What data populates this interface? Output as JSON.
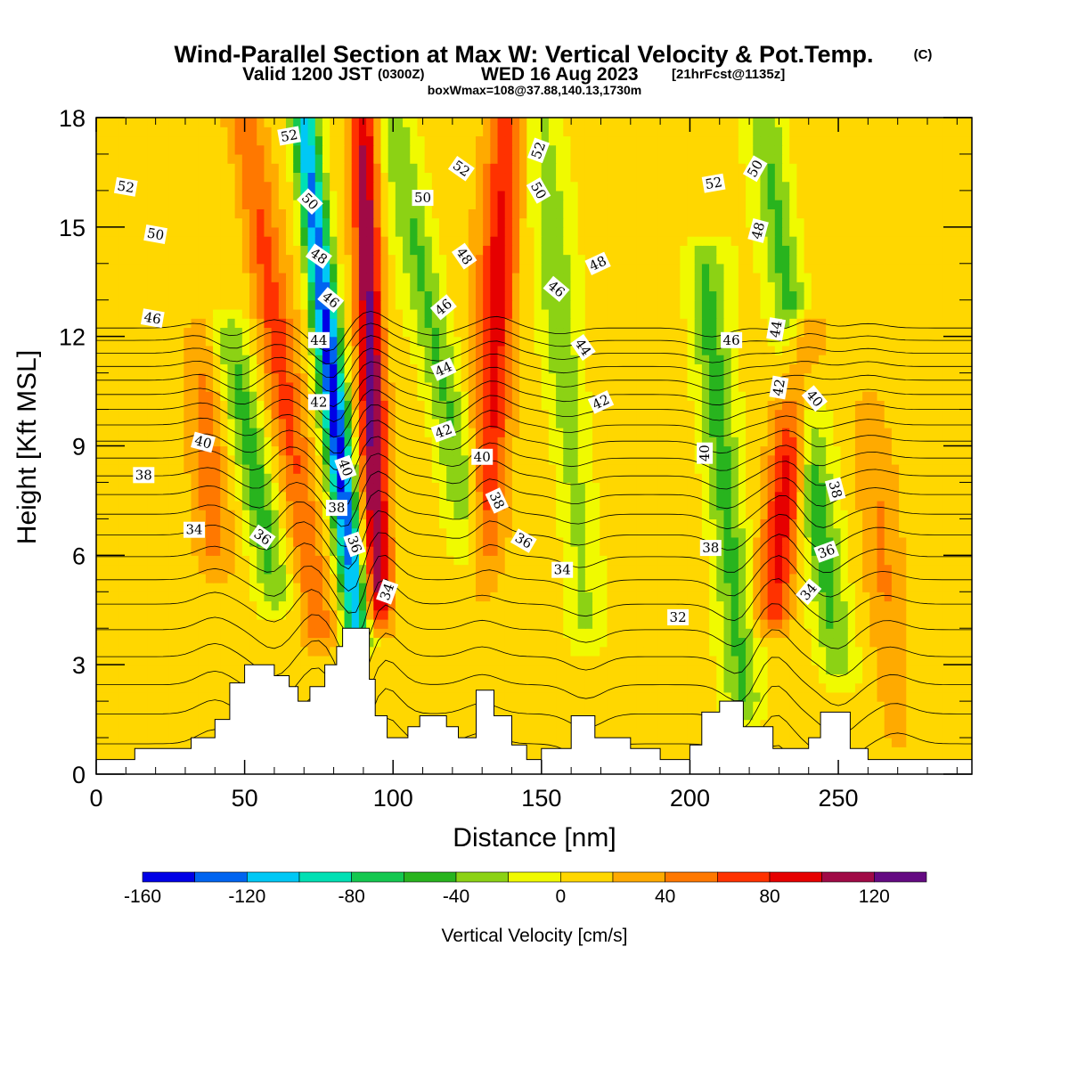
{
  "title": {
    "main": "Wind-Parallel Section at Max W: Vertical Velocity & Pot.Temp.",
    "copyright": "(C)",
    "valid_prefix": "Valid 1200 JST",
    "valid_zulu": "(0300Z)",
    "valid_date": "WED 16 Aug 2023",
    "forecast": "[21hrFcst@1135z]",
    "box": "boxWmax=108@37.88,140.13,1730m"
  },
  "chart_data": {
    "type": "heatmap",
    "xlabel": "Distance [nm]",
    "ylabel": "Height [Kft MSL]",
    "xlim": [
      0,
      295
    ],
    "ylim": [
      0,
      18
    ],
    "x_ticks": [
      0,
      50,
      100,
      150,
      200,
      250
    ],
    "y_ticks": [
      0,
      3,
      6,
      9,
      12,
      15,
      18
    ],
    "colorbar": {
      "label": "Vertical Velocity [cm/s]",
      "ticks": [
        -160,
        -120,
        -80,
        -40,
        0,
        40,
        80,
        120
      ],
      "min": -160,
      "max": 140,
      "bins": [
        {
          "from": -160,
          "to": -140,
          "color": "#0000e6"
        },
        {
          "from": -140,
          "to": -120,
          "color": "#0064f0"
        },
        {
          "from": -120,
          "to": -100,
          "color": "#00c8f5"
        },
        {
          "from": -100,
          "to": -80,
          "color": "#00e0b4"
        },
        {
          "from": -80,
          "to": -60,
          "color": "#14c850"
        },
        {
          "from": -60,
          "to": -40,
          "color": "#28b41e"
        },
        {
          "from": -40,
          "to": -20,
          "color": "#8cd214"
        },
        {
          "from": -20,
          "to": 0,
          "color": "#f0fa00"
        },
        {
          "from": 0,
          "to": 20,
          "color": "#ffd700"
        },
        {
          "from": 20,
          "to": 40,
          "color": "#ffaa00"
        },
        {
          "from": 40,
          "to": 60,
          "color": "#ff7800"
        },
        {
          "from": 60,
          "to": 80,
          "color": "#ff3200"
        },
        {
          "from": 80,
          "to": 100,
          "color": "#e60000"
        },
        {
          "from": 100,
          "to": 120,
          "color": "#a00a46"
        },
        {
          "from": 120,
          "to": 140,
          "color": "#640a82"
        }
      ]
    },
    "updraft_bands": [
      {
        "x_bottom": 75,
        "x_top": 50,
        "y_bottom": 4,
        "y_top": 18,
        "w": 60
      },
      {
        "x_bottom": 95,
        "x_top": 90,
        "y_bottom": 4.5,
        "y_top": 18,
        "w": 120
      },
      {
        "x_bottom": 130,
        "x_top": 138,
        "y_bottom": 5,
        "y_top": 18,
        "w": 80
      },
      {
        "x_bottom": 228,
        "x_top": 238,
        "y_bottom": 4.5,
        "y_top": 12,
        "w": 90
      },
      {
        "x_bottom": 40,
        "x_top": 35,
        "y_bottom": 6,
        "y_top": 12,
        "w": 40
      },
      {
        "x_bottom": 270,
        "x_top": 260,
        "y_bottom": 1,
        "y_top": 10,
        "w": 30
      }
    ],
    "downdraft_bands": [
      {
        "x_bottom": 88,
        "x_top": 70,
        "y_bottom": 4,
        "y_top": 18,
        "w": -160
      },
      {
        "x_bottom": 60,
        "x_top": 45,
        "y_bottom": 5,
        "y_top": 12,
        "w": -60
      },
      {
        "x_bottom": 130,
        "x_top": 100,
        "y_bottom": 5,
        "y_top": 18,
        "w": -50
      },
      {
        "x_bottom": 165,
        "x_top": 150,
        "y_bottom": 4,
        "y_top": 18,
        "w": -40
      },
      {
        "x_bottom": 218,
        "x_top": 205,
        "y_bottom": 2,
        "y_top": 14,
        "w": -60
      },
      {
        "x_bottom": 250,
        "x_top": 225,
        "y_bottom": 3,
        "y_top": 18,
        "w": -60
      }
    ],
    "terrain": [
      [
        0,
        0.4
      ],
      [
        13,
        0.4
      ],
      [
        13,
        0.7
      ],
      [
        32,
        0.7
      ],
      [
        32,
        1.0
      ],
      [
        40,
        1.0
      ],
      [
        40,
        1.5
      ],
      [
        45,
        1.5
      ],
      [
        45,
        2.5
      ],
      [
        50,
        2.5
      ],
      [
        50,
        3.0
      ],
      [
        60,
        3.0
      ],
      [
        60,
        2.7
      ],
      [
        65,
        2.7
      ],
      [
        65,
        2.4
      ],
      [
        68,
        2.4
      ],
      [
        68,
        2.0
      ],
      [
        72,
        2.0
      ],
      [
        72,
        2.4
      ],
      [
        77,
        2.4
      ],
      [
        77,
        3.0
      ],
      [
        81,
        3.0
      ],
      [
        81,
        3.5
      ],
      [
        83,
        3.5
      ],
      [
        83,
        4.0
      ],
      [
        92,
        4.0
      ],
      [
        92,
        2.6
      ],
      [
        94,
        2.6
      ],
      [
        94,
        1.6
      ],
      [
        98,
        1.6
      ],
      [
        98,
        1.0
      ],
      [
        105,
        1.0
      ],
      [
        105,
        1.3
      ],
      [
        109,
        1.3
      ],
      [
        109,
        1.6
      ],
      [
        118,
        1.6
      ],
      [
        118,
        1.3
      ],
      [
        122,
        1.3
      ],
      [
        122,
        1.0
      ],
      [
        128,
        1.0
      ],
      [
        128,
        2.3
      ],
      [
        134,
        2.3
      ],
      [
        134,
        1.6
      ],
      [
        140,
        1.6
      ],
      [
        140,
        0.8
      ],
      [
        145,
        0.8
      ],
      [
        145,
        0.4
      ],
      [
        150,
        0.4
      ],
      [
        150,
        0.7
      ],
      [
        160,
        0.7
      ],
      [
        160,
        1.6
      ],
      [
        168,
        1.6
      ],
      [
        168,
        1.0
      ],
      [
        180,
        1.0
      ],
      [
        180,
        0.7
      ],
      [
        190,
        0.7
      ],
      [
        190,
        0.4
      ],
      [
        200,
        0.4
      ],
      [
        200,
        0.8
      ],
      [
        204,
        0.8
      ],
      [
        204,
        1.7
      ],
      [
        210,
        1.7
      ],
      [
        210,
        2.0
      ],
      [
        218,
        2.0
      ],
      [
        218,
        1.3
      ],
      [
        228,
        1.3
      ],
      [
        228,
        0.7
      ],
      [
        240,
        0.7
      ],
      [
        240,
        1.0
      ],
      [
        244,
        1.0
      ],
      [
        244,
        1.7
      ],
      [
        254,
        1.7
      ],
      [
        254,
        0.7
      ],
      [
        260,
        0.7
      ],
      [
        260,
        0.4
      ],
      [
        295,
        0.4
      ]
    ],
    "theta_contours": {
      "start": 32,
      "end": 54,
      "step": 1,
      "labels": [
        {
          "text": "52",
          "x": 10,
          "y": 16.1,
          "rot": 10
        },
        {
          "text": "52",
          "x": 65,
          "y": 17.5,
          "rot": -10
        },
        {
          "text": "52",
          "x": 123,
          "y": 16.6,
          "rot": 35
        },
        {
          "text": "52",
          "x": 149,
          "y": 17.1,
          "rot": -70
        },
        {
          "text": "52",
          "x": 208,
          "y": 16.2,
          "rot": -10
        },
        {
          "text": "50",
          "x": 20,
          "y": 14.8,
          "rot": 10
        },
        {
          "text": "50",
          "x": 72,
          "y": 15.7,
          "rot": 45
        },
        {
          "text": "50",
          "x": 110,
          "y": 15.8,
          "rot": 0
        },
        {
          "text": "50",
          "x": 149,
          "y": 16.0,
          "rot": 60
        },
        {
          "text": "50",
          "x": 222,
          "y": 16.6,
          "rot": -60
        },
        {
          "text": "48",
          "x": 75,
          "y": 14.2,
          "rot": 35
        },
        {
          "text": "48",
          "x": 124,
          "y": 14.2,
          "rot": 55
        },
        {
          "text": "48",
          "x": 169,
          "y": 14.0,
          "rot": -25
        },
        {
          "text": "48",
          "x": 223,
          "y": 14.9,
          "rot": -75
        },
        {
          "text": "46",
          "x": 19,
          "y": 12.5,
          "rot": 10
        },
        {
          "text": "46",
          "x": 79,
          "y": 13.0,
          "rot": 40
        },
        {
          "text": "46",
          "x": 117,
          "y": 12.8,
          "rot": -40
        },
        {
          "text": "46",
          "x": 155,
          "y": 13.3,
          "rot": 40
        },
        {
          "text": "46",
          "x": 214,
          "y": 11.9,
          "rot": 0
        },
        {
          "text": "44",
          "x": 75,
          "y": 11.9,
          "rot": 0
        },
        {
          "text": "44",
          "x": 117,
          "y": 11.1,
          "rot": -25
        },
        {
          "text": "44",
          "x": 164,
          "y": 11.7,
          "rot": 55
        },
        {
          "text": "44",
          "x": 229,
          "y": 12.2,
          "rot": -80
        },
        {
          "text": "42",
          "x": 75,
          "y": 10.2,
          "rot": 0
        },
        {
          "text": "42",
          "x": 117,
          "y": 9.4,
          "rot": -20
        },
        {
          "text": "42",
          "x": 170,
          "y": 10.2,
          "rot": -25
        },
        {
          "text": "42",
          "x": 230,
          "y": 10.6,
          "rot": -80
        },
        {
          "text": "40",
          "x": 36,
          "y": 9.1,
          "rot": 15
        },
        {
          "text": "40",
          "x": 84,
          "y": 8.4,
          "rot": 70
        },
        {
          "text": "40",
          "x": 130,
          "y": 8.7,
          "rot": 0
        },
        {
          "text": "40",
          "x": 205,
          "y": 8.8,
          "rot": -90
        },
        {
          "text": "40",
          "x": 242,
          "y": 10.3,
          "rot": 50
        },
        {
          "text": "38",
          "x": 16,
          "y": 8.2,
          "rot": 0
        },
        {
          "text": "38",
          "x": 81,
          "y": 7.3,
          "rot": 0
        },
        {
          "text": "38",
          "x": 135,
          "y": 7.5,
          "rot": 65
        },
        {
          "text": "38",
          "x": 207,
          "y": 6.2,
          "rot": 0
        },
        {
          "text": "38",
          "x": 249,
          "y": 7.8,
          "rot": 75
        },
        {
          "text": "34",
          "x": 33,
          "y": 6.7,
          "rot": 0
        },
        {
          "text": "34",
          "x": 98,
          "y": 5.0,
          "rot": -70
        },
        {
          "text": "34",
          "x": 157,
          "y": 5.6,
          "rot": 0
        },
        {
          "text": "34",
          "x": 240,
          "y": 5.0,
          "rot": -50
        },
        {
          "text": "36",
          "x": 56,
          "y": 6.5,
          "rot": 35
        },
        {
          "text": "36",
          "x": 87,
          "y": 6.3,
          "rot": 70
        },
        {
          "text": "36",
          "x": 144,
          "y": 6.4,
          "rot": 30
        },
        {
          "text": "36",
          "x": 246,
          "y": 6.1,
          "rot": -20
        },
        {
          "text": "32",
          "x": 196,
          "y": 4.3,
          "rot": 0
        }
      ]
    }
  }
}
